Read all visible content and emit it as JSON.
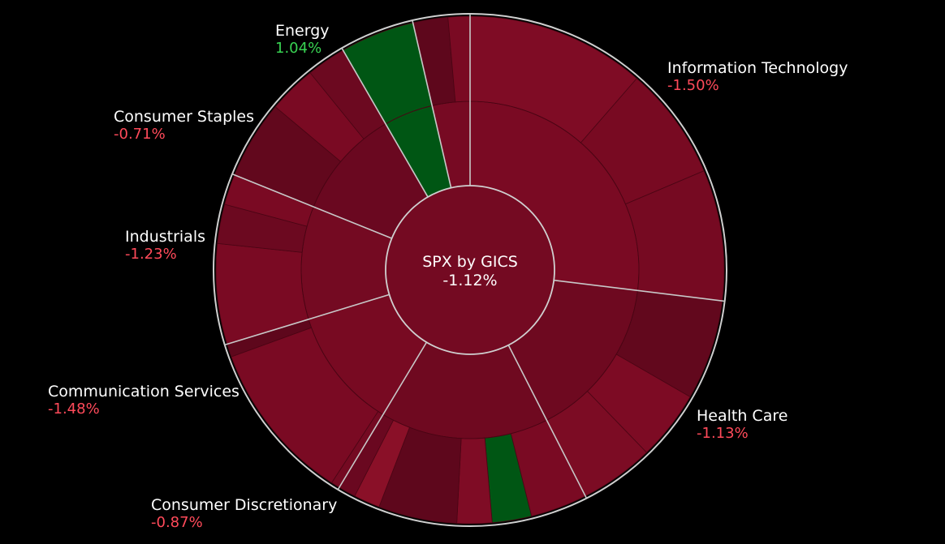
{
  "chart_data": {
    "type": "sunburst",
    "center": {
      "label": "SPX by GICS",
      "value": "-1.12%"
    },
    "sectors": [
      {
        "name": "Information Technology",
        "change": "-1.50%",
        "start_deg": 0,
        "end_deg": 97,
        "color": "#7a0a23",
        "children": [
          {
            "start_deg": 0,
            "end_deg": 41,
            "color": "#7f0c25"
          },
          {
            "start_deg": 41,
            "end_deg": 67,
            "color": "#780a22"
          },
          {
            "start_deg": 67,
            "end_deg": 97,
            "color": "#760a22"
          }
        ]
      },
      {
        "name": "Health Care",
        "change": "-1.13%",
        "start_deg": 97,
        "end_deg": 153,
        "color": "#6e0920",
        "children": [
          {
            "start_deg": 97,
            "end_deg": 120,
            "color": "#62081d"
          },
          {
            "start_deg": 120,
            "end_deg": 136,
            "color": "#7d0b24"
          },
          {
            "start_deg": 136,
            "end_deg": 153,
            "color": "#7c0c24"
          }
        ]
      },
      {
        "name": "Consumer Discretionary",
        "change": "-0.87%",
        "start_deg": 153,
        "end_deg": 211,
        "color": "#6f0920",
        "children": [
          {
            "start_deg": 153,
            "end_deg": 166,
            "color": "#7a0a23"
          },
          {
            "start_deg": 166,
            "end_deg": 175,
            "color": "#005614"
          },
          {
            "start_deg": 175,
            "end_deg": 183,
            "color": "#7f0c25"
          },
          {
            "start_deg": 183,
            "end_deg": 201,
            "color": "#5e071c"
          },
          {
            "start_deg": 201,
            "end_deg": 207,
            "color": "#8a1028"
          },
          {
            "start_deg": 207,
            "end_deg": 211,
            "color": "#6a0820"
          }
        ]
      },
      {
        "name": "Communication Services",
        "change": "-1.48%",
        "start_deg": 211,
        "end_deg": 253,
        "color": "#780a22",
        "children": [
          {
            "start_deg": 211,
            "end_deg": 213,
            "color": "#740a22"
          },
          {
            "start_deg": 213,
            "end_deg": 250,
            "color": "#7a0a23"
          },
          {
            "start_deg": 250,
            "end_deg": 253,
            "color": "#5e071c"
          }
        ]
      },
      {
        "name": "Industrials",
        "change": "-1.23%",
        "start_deg": 253,
        "end_deg": 292,
        "color": "#740a22",
        "children": [
          {
            "start_deg": 253,
            "end_deg": 276,
            "color": "#7a0a23"
          },
          {
            "start_deg": 276,
            "end_deg": 285,
            "color": "#6c0920"
          },
          {
            "start_deg": 285,
            "end_deg": 292,
            "color": "#7a0a23"
          }
        ]
      },
      {
        "name": "Consumer Staples",
        "change": "-0.71%",
        "start_deg": 292,
        "end_deg": 330,
        "color": "#6a0820",
        "children": [
          {
            "start_deg": 292,
            "end_deg": 310,
            "color": "#62081d"
          },
          {
            "start_deg": 310,
            "end_deg": 321,
            "color": "#7a0a23"
          },
          {
            "start_deg": 321,
            "end_deg": 330,
            "color": "#6c0920"
          }
        ]
      },
      {
        "name": "Energy",
        "change": "1.04%",
        "start_deg": 330,
        "end_deg": 347,
        "color": "#005614",
        "children": [
          {
            "start_deg": 330,
            "end_deg": 347,
            "color": "#005614"
          }
        ]
      },
      {
        "name": "",
        "change": "",
        "start_deg": 347,
        "end_deg": 360,
        "color": "#770a23",
        "children": [
          {
            "start_deg": 347,
            "end_deg": 355,
            "color": "#5e071c"
          },
          {
            "start_deg": 355,
            "end_deg": 360,
            "color": "#7a0a23"
          }
        ]
      }
    ],
    "label_colors": {
      "name": "#ffffff",
      "negative": "#ff4a5a",
      "positive": "#38d352"
    }
  }
}
